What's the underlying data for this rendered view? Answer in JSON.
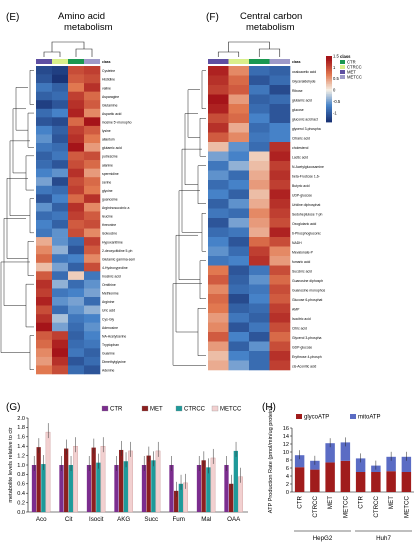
{
  "panels": {
    "E": {
      "letter": "(E)",
      "title_line1": "Amino acid",
      "title_line2": "metabolism"
    },
    "F": {
      "letter": "(F)",
      "title_line1": "Central carbon",
      "title_line2": "metabolism"
    },
    "G": {
      "letter": "(G)"
    },
    "H": {
      "letter": "(H)"
    }
  },
  "heatmap_legend": {
    "title": "class",
    "classes": [
      {
        "name": "CTR",
        "color": "#1a9850"
      },
      {
        "name": "CTRCC",
        "color": "#d9ef8b"
      },
      {
        "name": "MET",
        "color": "#5e4fa2"
      },
      {
        "name": "METCC",
        "color": "#9e9ac8"
      }
    ],
    "scale_ticks": [
      "1.5",
      "1",
      "0.5",
      "0",
      "-0.5",
      "-1"
    ]
  },
  "chart_data": [
    {
      "type": "heatmap",
      "panel": "E",
      "class_header": "class",
      "rows": [
        "Cysteine",
        "Histidine",
        "valine",
        "Asparagine",
        "Glutamine",
        "Aspartic acid",
        "inosine 5'-monopho",
        "lysine",
        "allantoin",
        "glutamic acid",
        "putrescine",
        "alanine",
        "spermidine",
        "serine",
        "glycine",
        "guanosine",
        "Argininosuccinic a",
        "leucine",
        "threonine",
        "isoleucine",
        "Hypoxanthine",
        "2-deoxycitidine 5-ph",
        "Glutamic gamma-sem",
        "4-Hydroxyproline",
        "Inosinic acid",
        "Ornithine",
        "Methionine",
        "Arginine",
        "Uric acid",
        "Cys-Gly",
        "Adenosine",
        "NA-Acetylserine",
        "Tryptophan",
        "Guanine",
        "Dimethylglycine",
        "Adenine"
      ],
      "columns": 4,
      "values": [
        [
          -1.2,
          -1.3,
          1.0,
          1.1
        ],
        [
          -1.1,
          -1.4,
          0.9,
          1.0
        ],
        [
          -0.8,
          -1.0,
          0.7,
          1.2
        ],
        [
          -1.0,
          -0.9,
          1.1,
          0.8
        ],
        [
          -1.3,
          -1.1,
          1.2,
          0.9
        ],
        [
          -0.9,
          -0.7,
          1.3,
          0.6
        ],
        [
          -1.1,
          -1.2,
          0.8,
          1.4
        ],
        [
          -0.7,
          -1.0,
          1.1,
          0.9
        ],
        [
          -0.6,
          -1.1,
          1.2,
          0.7
        ],
        [
          -0.8,
          -0.9,
          1.4,
          0.5
        ],
        [
          -1.0,
          -0.8,
          0.9,
          1.0
        ],
        [
          -0.9,
          -1.1,
          1.0,
          0.8
        ],
        [
          -0.7,
          -0.6,
          1.2,
          0.5
        ],
        [
          -0.5,
          -1.2,
          1.0,
          0.8
        ],
        [
          -0.8,
          -0.9,
          1.1,
          0.7
        ],
        [
          -1.1,
          -0.7,
          0.8,
          1.2
        ],
        [
          -0.6,
          -1.0,
          1.2,
          0.6
        ],
        [
          -0.9,
          -0.8,
          1.1,
          0.9
        ],
        [
          -0.7,
          -1.0,
          0.9,
          1.0
        ],
        [
          -0.8,
          -0.6,
          1.0,
          0.6
        ],
        [
          0.4,
          -0.6,
          -0.9,
          1.1
        ],
        [
          0.6,
          -0.4,
          -1.1,
          0.9
        ],
        [
          0.8,
          -0.8,
          -0.7,
          0.6
        ],
        [
          0.3,
          -0.5,
          -1.0,
          1.0
        ],
        [
          0.9,
          -0.9,
          0.2,
          -0.8
        ],
        [
          1.2,
          -0.4,
          -0.9,
          -0.6
        ],
        [
          1.1,
          -0.8,
          -0.7,
          -0.5
        ],
        [
          1.3,
          -0.6,
          -0.5,
          -0.9
        ],
        [
          1.0,
          -0.9,
          -0.6,
          -0.4
        ],
        [
          1.2,
          -0.3,
          -0.8,
          -0.7
        ],
        [
          1.4,
          -0.5,
          -0.9,
          -0.6
        ],
        [
          0.9,
          1.1,
          -1.0,
          -0.7
        ],
        [
          0.8,
          1.3,
          -0.9,
          -0.8
        ],
        [
          0.6,
          1.4,
          -0.8,
          -1.0
        ],
        [
          0.5,
          1.2,
          -1.1,
          -0.9
        ],
        [
          0.7,
          1.0,
          -0.9,
          -1.1
        ]
      ]
    },
    {
      "type": "heatmap",
      "panel": "F",
      "class_header": "class",
      "rows": [
        "oxaloacetic acid",
        "Glyceraldehyde",
        "Ribose",
        "glutamic acid",
        "glucose",
        "gluconic acid lact",
        "glycerol 3-phospha",
        "Citraric acid",
        "cholesterol",
        "Lactic acid",
        "N-Acetylglucosamine",
        "beta-Fructose 1,6-",
        "Butyric acid",
        "UDP-glucose",
        "Uridine diphosphat",
        "Sedoheptulose 7-ph",
        "Oxoglutaric acid",
        "6-Phosphogluconic",
        "NADH",
        "Mevalonate-P",
        "fumaric acid",
        "Succinic acid",
        "Guanosine diphosph",
        "Guanosine monophos",
        "Glucose 6-phosphat",
        "AMP",
        "Isocitric acid",
        "Citric acid",
        "Glycerol 3-phospha",
        "GDP-glucose",
        "Erythrose 4-phosph",
        "cis-Aconitic acid"
      ],
      "columns": 4,
      "values": [
        [
          1.3,
          0.6,
          -0.9,
          -1.0
        ],
        [
          1.2,
          0.8,
          -1.1,
          -0.9
        ],
        [
          1.1,
          0.9,
          -0.8,
          -1.2
        ],
        [
          1.4,
          0.5,
          -1.0,
          -0.9
        ],
        [
          1.3,
          0.7,
          -0.9,
          -1.1
        ],
        [
          1.0,
          0.8,
          -0.7,
          -1.1
        ],
        [
          1.2,
          0.4,
          -0.9,
          -0.7
        ],
        [
          0.9,
          0.6,
          -0.8,
          -0.7
        ],
        [
          0.3,
          -0.6,
          -0.9,
          1.2
        ],
        [
          -0.5,
          -0.7,
          0.2,
          1.3
        ],
        [
          -0.8,
          -0.4,
          0.3,
          1.1
        ],
        [
          -0.6,
          -0.9,
          0.4,
          1.2
        ],
        [
          -0.9,
          -0.7,
          0.5,
          1.1
        ],
        [
          -0.7,
          -1.0,
          0.3,
          1.3
        ],
        [
          -1.0,
          -0.6,
          0.4,
          1.2
        ],
        [
          -0.8,
          -0.9,
          0.6,
          1.1
        ],
        [
          -1.1,
          -0.5,
          0.5,
          1.0
        ],
        [
          -0.9,
          -0.8,
          0.4,
          1.3
        ],
        [
          -0.7,
          -1.1,
          0.8,
          1.0
        ],
        [
          -0.6,
          -0.9,
          1.1,
          0.6
        ],
        [
          -0.8,
          -0.7,
          1.2,
          0.5
        ],
        [
          0.7,
          -1.1,
          -0.8,
          1.0
        ],
        [
          0.9,
          -1.0,
          -0.6,
          0.8
        ],
        [
          0.6,
          -0.9,
          -0.8,
          1.0
        ],
        [
          0.8,
          -1.2,
          -0.7,
          0.9
        ],
        [
          0.7,
          -1.0,
          -0.9,
          1.1
        ],
        [
          0.5,
          -0.8,
          -1.0,
          1.2
        ],
        [
          0.6,
          -1.1,
          -0.8,
          1.0
        ],
        [
          0.9,
          -0.7,
          -1.1,
          0.8
        ],
        [
          0.5,
          -1.0,
          -0.6,
          1.0
        ],
        [
          0.3,
          -0.7,
          -0.9,
          1.2
        ],
        [
          0.4,
          -0.5,
          -0.9,
          1.1
        ]
      ]
    },
    {
      "type": "bar",
      "panel": "G",
      "ylabel": "metabolite levels relative to ctr",
      "ylim": [
        0,
        2.0
      ],
      "yticks": [
        "0.0",
        "0.2",
        "0.4",
        "0.6",
        "0.8",
        "1.0",
        "1.2",
        "1.4",
        "1.6",
        "1.8",
        "2.0"
      ],
      "categories": [
        "Aco",
        "Cit",
        "Isocit",
        "AKG",
        "Succ",
        "Fum",
        "Mal",
        "OAA"
      ],
      "series": [
        {
          "name": "CTR",
          "color": "#7b2d8e",
          "values": [
            1.0,
            1.0,
            1.0,
            1.0,
            1.0,
            1.0,
            1.0,
            1.0
          ]
        },
        {
          "name": "MET",
          "color": "#8b1f1f",
          "values": [
            1.38,
            1.35,
            1.37,
            1.32,
            1.2,
            0.45,
            1.1,
            0.6
          ]
        },
        {
          "name": "CTRCC",
          "color": "#1f9a9a",
          "values": [
            1.02,
            1.0,
            1.05,
            1.08,
            1.1,
            0.6,
            0.95,
            1.3
          ]
        },
        {
          "name": "METCC",
          "color": "#f2d0d0",
          "values": [
            1.7,
            1.4,
            1.4,
            1.3,
            1.3,
            0.62,
            1.15,
            0.75
          ]
        }
      ]
    },
    {
      "type": "bar",
      "stacked": true,
      "panel": "H",
      "ylabel": "ATP Production Rate (pmol/min/ug protein)",
      "ylim": [
        0,
        16
      ],
      "yticks": [
        "0",
        "2",
        "4",
        "6",
        "8",
        "10",
        "12",
        "14",
        "16"
      ],
      "categories": [
        "CTR",
        "CTRCC",
        "MET",
        "METCC",
        "CTR",
        "CTRCC",
        "MET",
        "METCC"
      ],
      "groups": [
        {
          "name": "HepG2",
          "span": [
            0,
            3
          ]
        },
        {
          "name": "Huh7",
          "span": [
            4,
            7
          ]
        }
      ],
      "series": [
        {
          "name": "glycoATP",
          "color": "#a01c1c",
          "values": [
            6.2,
            5.6,
            7.4,
            7.8,
            5.0,
            5.0,
            5.2,
            5.0
          ]
        },
        {
          "name": "mitoATP",
          "color": "#5b6cc4",
          "values": [
            3.0,
            2.2,
            4.8,
            4.6,
            3.4,
            1.6,
            3.6,
            3.8
          ]
        }
      ]
    }
  ]
}
